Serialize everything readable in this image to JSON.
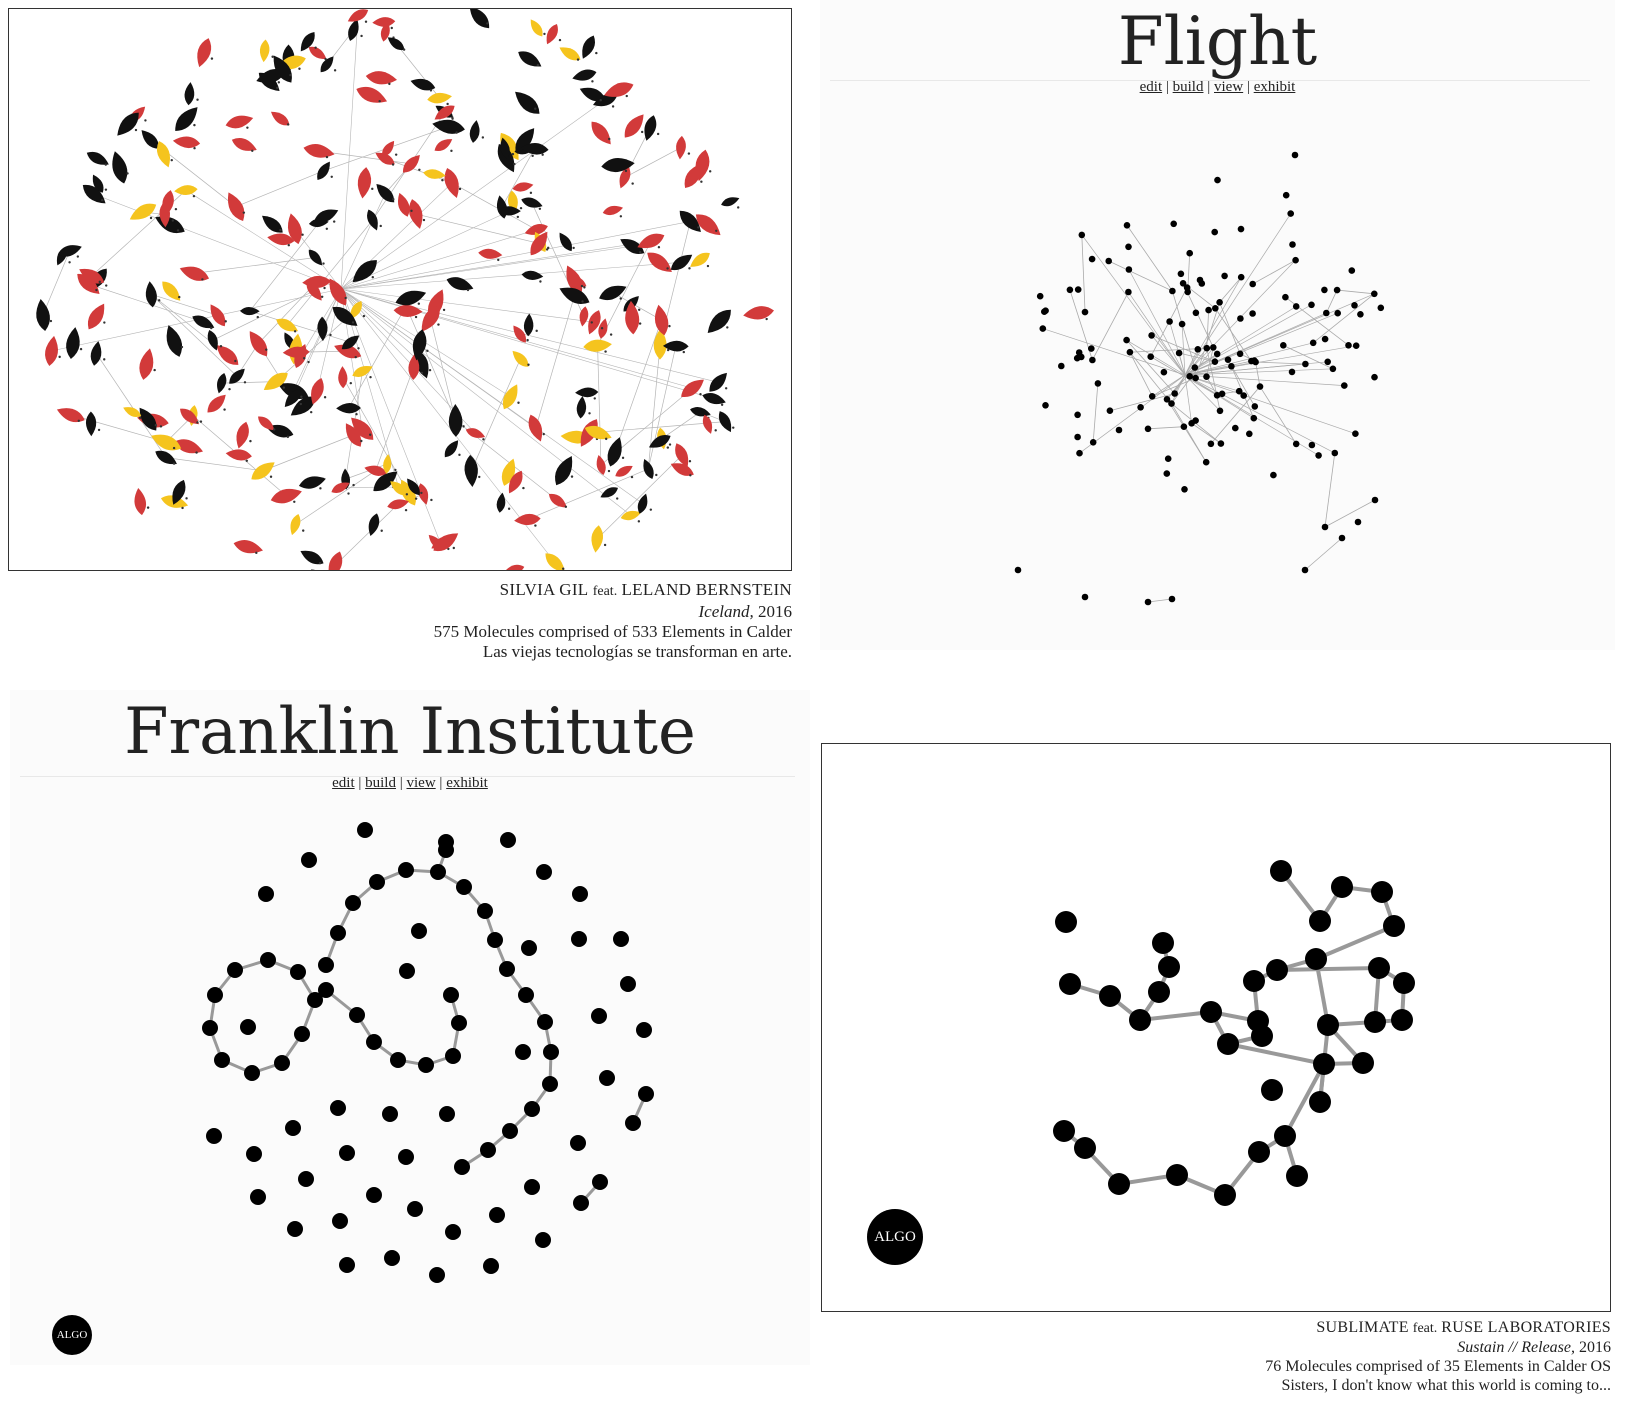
{
  "panel_iceland": {
    "artist_a": "SILVIA GIL",
    "feat": "feat.",
    "artist_b": "LELAND BERNSTEIN",
    "work_title": "Iceland,",
    "year": "2016",
    "stats": "575 Molecules comprised of 533 Elements in Calder",
    "description": "Las viejas tecnologías se transforman en arte."
  },
  "panel_flight": {
    "title": "Flight",
    "nav": {
      "edit": "edit",
      "build": "build",
      "view": "view",
      "exhibit": "exhibit",
      "sep": "|"
    }
  },
  "panel_franklin": {
    "title": "Franklin Institute",
    "nav": {
      "edit": "edit",
      "build": "build",
      "view": "view",
      "exhibit": "exhibit",
      "sep": "|"
    },
    "badge": "ALGO"
  },
  "panel_sustain": {
    "artist_a": "SUBLIMATE",
    "feat": "feat.",
    "artist_b": "RUSE LABORATORIES",
    "work_title": "Sustain // Release,",
    "year": "2016",
    "stats": "76 Molecules comprised of 35 Elements in Calder OS",
    "description": "Sisters, I don't know what this world is coming to...",
    "badge": "ALGO"
  },
  "colors": {
    "red": "#d23a3a",
    "yellow": "#f5c41e",
    "black": "#111111",
    "edge": "#b5b5b5"
  }
}
